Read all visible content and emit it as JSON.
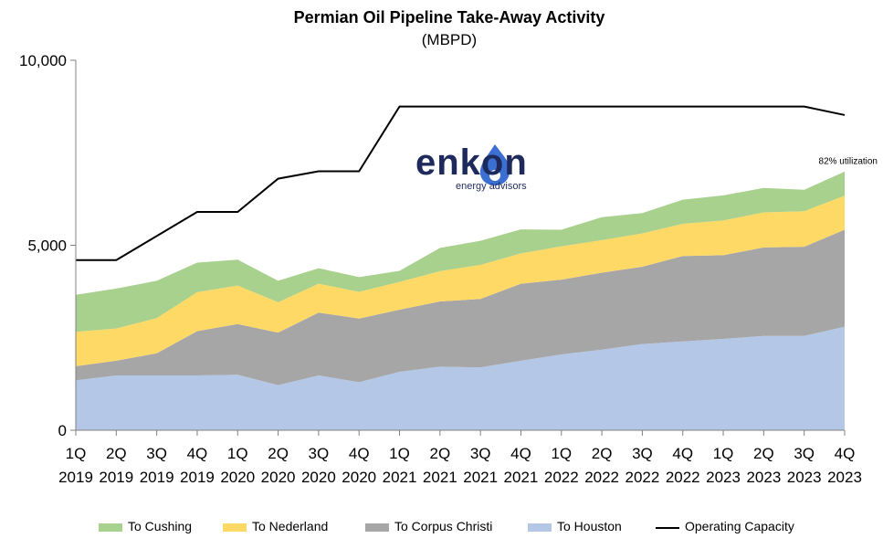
{
  "chart_data": {
    "type": "area",
    "title": "Permian Oil Pipeline Take-Away Activity",
    "subtitle": "(MBPD)",
    "categories": [
      [
        "1Q",
        "2019"
      ],
      [
        "2Q",
        "2019"
      ],
      [
        "3Q",
        "2019"
      ],
      [
        "4Q",
        "2019"
      ],
      [
        "1Q",
        "2020"
      ],
      [
        "2Q",
        "2020"
      ],
      [
        "3Q",
        "2020"
      ],
      [
        "4Q",
        "2020"
      ],
      [
        "1Q",
        "2021"
      ],
      [
        "2Q",
        "2021"
      ],
      [
        "3Q",
        "2021"
      ],
      [
        "4Q",
        "2021"
      ],
      [
        "1Q",
        "2022"
      ],
      [
        "2Q",
        "2022"
      ],
      [
        "3Q",
        "2022"
      ],
      [
        "4Q",
        "2022"
      ],
      [
        "1Q",
        "2023"
      ],
      [
        "2Q",
        "2023"
      ],
      [
        "3Q",
        "2023"
      ],
      [
        "4Q",
        "2023"
      ]
    ],
    "ylim": [
      0,
      10000
    ],
    "yticks": [
      "0",
      "5,000",
      "10,000"
    ],
    "ytick_values": [
      0,
      5000,
      10000
    ],
    "stacked": true,
    "series": [
      {
        "name": "To Houston",
        "color": "#b4c7e7",
        "values": [
          1350,
          1480,
          1480,
          1480,
          1500,
          1220,
          1480,
          1300,
          1580,
          1720,
          1700,
          1880,
          2050,
          2180,
          2330,
          2400,
          2470,
          2550,
          2550,
          2800
        ]
      },
      {
        "name": "To Corpus Christi",
        "color": "#a6a6a6",
        "values": [
          380,
          400,
          600,
          1200,
          1370,
          1420,
          1700,
          1720,
          1680,
          1760,
          1850,
          2080,
          2020,
          2080,
          2090,
          2310,
          2260,
          2390,
          2410,
          2620
        ]
      },
      {
        "name": "To Nederland",
        "color": "#ffd966",
        "values": [
          930,
          870,
          950,
          1050,
          1040,
          820,
          780,
          720,
          750,
          820,
          920,
          820,
          900,
          880,
          900,
          870,
          940,
          950,
          960,
          920
        ]
      },
      {
        "name": "To Cushing",
        "color": "#a9d18e",
        "values": [
          1000,
          1080,
          1010,
          800,
          700,
          580,
          420,
          400,
          300,
          630,
          650,
          650,
          450,
          620,
          550,
          650,
          680,
          660,
          580,
          650
        ]
      }
    ],
    "line_series": {
      "name": "Operating Capacity",
      "color": "#000000",
      "values": [
        4600,
        4600,
        5250,
        5900,
        5900,
        6800,
        7000,
        7000,
        8750,
        8750,
        8750,
        8750,
        8750,
        8750,
        8750,
        8750,
        8750,
        8750,
        8750,
        8520
      ]
    },
    "annotations": [
      {
        "text": "82% utilization",
        "x_index": 19,
        "y": 7300
      }
    ],
    "legend_position": "bottom",
    "grid": false
  },
  "legend": {
    "items": [
      {
        "label": "To Cushing",
        "color": "#a9d18e",
        "kind": "area"
      },
      {
        "label": "To Nederland",
        "color": "#ffd966",
        "kind": "area"
      },
      {
        "label": "To Corpus Christi",
        "color": "#a6a6a6",
        "kind": "area"
      },
      {
        "label": "To Houston",
        "color": "#b4c7e7",
        "kind": "area"
      },
      {
        "label": "Operating Capacity",
        "color": "#000000",
        "kind": "line"
      }
    ]
  },
  "logo": {
    "word": "enkon",
    "sub": "energy advisors"
  }
}
